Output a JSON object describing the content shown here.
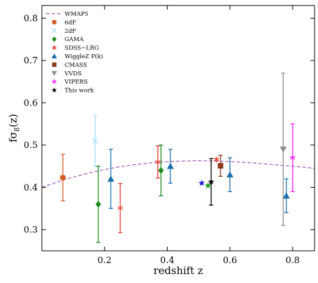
{
  "chart_data": {
    "type": "scatter",
    "xlabel": "redshift z",
    "ylabel_main": "fσ",
    "ylabel_sub": "8",
    "ylabel_tail": "(z)",
    "xlim": [
      0.0,
      0.87
    ],
    "ylim": [
      0.25,
      0.83
    ],
    "xticks": [
      {
        "value": 0.2,
        "label": "0.2"
      },
      {
        "value": 0.4,
        "label": "0.4"
      },
      {
        "value": 0.6,
        "label": "0.6"
      },
      {
        "value": 0.8,
        "label": "0.8"
      }
    ],
    "yticks": [
      {
        "value": 0.3,
        "label": "0.3"
      },
      {
        "value": 0.4,
        "label": "0.4"
      },
      {
        "value": 0.5,
        "label": "0.5"
      },
      {
        "value": 0.6,
        "label": "0.6"
      },
      {
        "value": 0.7,
        "label": "0.7"
      },
      {
        "value": 0.8,
        "label": "0.8"
      }
    ],
    "grid": false,
    "legend_position": "top-left",
    "model_curve": {
      "name": "WMAP5",
      "color": "#9b59b6",
      "style": "dashed",
      "x": [
        0.0,
        0.05,
        0.1,
        0.15,
        0.2,
        0.25,
        0.3,
        0.35,
        0.4,
        0.45,
        0.5,
        0.55,
        0.6,
        0.65,
        0.7,
        0.75,
        0.8,
        0.87
      ],
      "y": [
        0.4,
        0.413,
        0.424,
        0.434,
        0.442,
        0.449,
        0.454,
        0.458,
        0.461,
        0.462,
        0.463,
        0.462,
        0.461,
        0.459,
        0.456,
        0.453,
        0.45,
        0.445
      ]
    },
    "series": [
      {
        "name": "6dF",
        "marker": "circle",
        "color": "#d35f26",
        "points": [
          {
            "x": 0.067,
            "y": 0.423,
            "err_low": 0.055,
            "err_high": 0.055
          }
        ]
      },
      {
        "name": "2dF",
        "marker": "x",
        "color": "#a8e0f5",
        "points": [
          {
            "x": 0.17,
            "y": 0.51,
            "err_low": 0.06,
            "err_high": 0.06
          }
        ]
      },
      {
        "name": "GAMA",
        "marker": "diamond",
        "color": "#188a1a",
        "points": [
          {
            "x": 0.18,
            "y": 0.36,
            "err_low": 0.09,
            "err_high": 0.09
          },
          {
            "x": 0.38,
            "y": 0.44,
            "err_low": 0.06,
            "err_high": 0.06
          }
        ]
      },
      {
        "name": "SDSS−LRG",
        "marker": "asterisk",
        "color": "#e8332b",
        "points": [
          {
            "x": 0.25,
            "y": 0.351,
            "err_low": 0.058,
            "err_high": 0.058
          },
          {
            "x": 0.37,
            "y": 0.46,
            "err_low": 0.038,
            "err_high": 0.038
          }
        ]
      },
      {
        "name": "WiggleZ P(k)",
        "marker": "triangle-up",
        "color": "#1a6fad",
        "points": [
          {
            "x": 0.22,
            "y": 0.42,
            "err_low": 0.07,
            "err_high": 0.07
          },
          {
            "x": 0.41,
            "y": 0.45,
            "err_low": 0.04,
            "err_high": 0.04
          },
          {
            "x": 0.6,
            "y": 0.43,
            "err_low": 0.04,
            "err_high": 0.04
          },
          {
            "x": 0.78,
            "y": 0.38,
            "err_low": 0.04,
            "err_high": 0.04
          }
        ]
      },
      {
        "name": "CMASS",
        "marker": "square",
        "color": "#8b3a1a",
        "points": [
          {
            "x": 0.57,
            "y": 0.451,
            "err_low": 0.025,
            "err_high": 0.025
          }
        ]
      },
      {
        "name": "VVDS",
        "marker": "triangle-down",
        "color": "#8c8c8c",
        "points": [
          {
            "x": 0.77,
            "y": 0.49,
            "err_low": 0.18,
            "err_high": 0.18
          }
        ]
      },
      {
        "name": "VIPERS",
        "marker": "asterisk",
        "color": "#ff1aff",
        "points": [
          {
            "x": 0.8,
            "y": 0.47,
            "err_low": 0.08,
            "err_high": 0.08
          }
        ]
      },
      {
        "name": "This work",
        "marker": "star",
        "color": "#000000",
        "points": [
          {
            "x": 0.54,
            "y": 0.413,
            "err_low": 0.055,
            "err_high": 0.055
          }
        ]
      }
    ],
    "extra_points": [
      {
        "x": 0.51,
        "y": 0.41,
        "marker": "star",
        "color": "#1a1ad6"
      },
      {
        "x": 0.53,
        "y": 0.404,
        "marker": "star",
        "color": "#1a9a1a"
      },
      {
        "x": 0.557,
        "y": 0.466,
        "marker": "asterisk",
        "color": "#e8332b"
      }
    ]
  }
}
